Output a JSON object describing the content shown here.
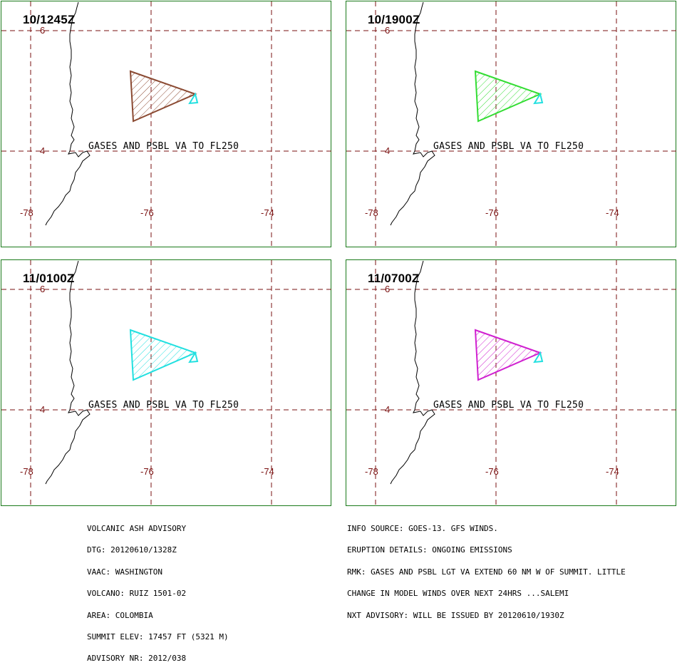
{
  "panels": [
    {
      "time": "10/1245Z",
      "color": "#8b4a32"
    },
    {
      "time": "10/1900Z",
      "color": "#33dd33"
    },
    {
      "time": "11/0100Z",
      "color": "#22e0e0"
    },
    {
      "time": "11/0700Z",
      "color": "#d021d0"
    }
  ],
  "lat_labels": [
    "6",
    "4"
  ],
  "lon_labels": [
    "-78",
    "-76",
    "-74"
  ],
  "plume_note": "GASES AND PSBL VA TO FL250",
  "summit_marker_color": "#22e0e0",
  "grid_color": "#7a1010",
  "frame_color": "#1a7a1a",
  "advisory_left": [
    "VOLCANIC ASH ADVISORY",
    "DTG: 20120610/1328Z",
    "VAAC: WASHINGTON",
    "VOLCANO: RUIZ 1501-02",
    "AREA: COLOMBIA",
    "SUMMIT ELEV: 17457 FT (5321 M)",
    "ADVISORY NR: 2012/038"
  ],
  "advisory_right": [
    "INFO SOURCE: GOES-13. GFS WINDS.",
    "ERUPTION DETAILS: ONGOING EMISSIONS",
    "RMK: GASES AND PSBL LGT VA EXTEND 60 NM W OF SUMMIT. LITTLE",
    "CHANGE IN MODEL WINDS OVER NEXT 24HRS ...SALEMI",
    "NXT ADVISORY: WILL BE ISSUED BY 20120610/1930Z"
  ]
}
